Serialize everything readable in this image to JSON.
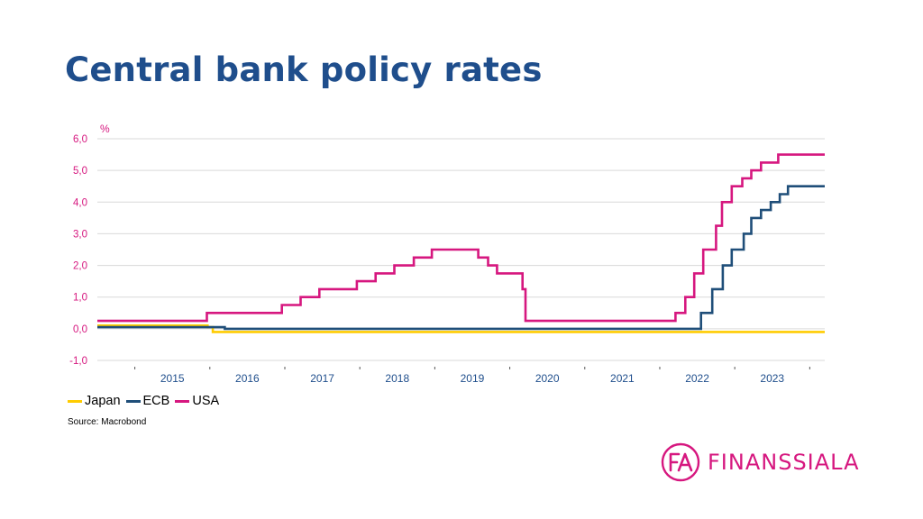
{
  "title": "Central bank policy rates",
  "source": "Source: Macrobond",
  "brand": {
    "name": "FINANSSIALA",
    "logo_letters": "FA",
    "color": "#d6177f"
  },
  "colors": {
    "title": "#1f4e8c",
    "axis_label": "#d6177f",
    "year_label": "#1f4e8c",
    "grid": "#d9d9d9"
  },
  "chart_data": {
    "type": "line",
    "step": true,
    "unit_label": "%",
    "xlim": [
      2014.5,
      2024.2
    ],
    "ylim": [
      -1,
      6
    ],
    "yticks": [
      -1,
      0,
      1,
      2,
      3,
      4,
      5,
      6
    ],
    "yticklabels": [
      "-1,0",
      "0,0",
      "1,0",
      "2,0",
      "3,0",
      "4,0",
      "5,0",
      "6,0"
    ],
    "xticklabels": [
      "2015",
      "2016",
      "2017",
      "2018",
      "2019",
      "2020",
      "2021",
      "2022",
      "2023"
    ],
    "grid": true,
    "legend": "bottom-left",
    "series": [
      {
        "name": "Japan",
        "color": "#ffcc00",
        "points": [
          [
            2014.5,
            0.1
          ],
          [
            2015.97,
            0.1
          ],
          [
            2015.97,
            0.05
          ],
          [
            2016.04,
            0.05
          ],
          [
            2016.04,
            -0.1
          ],
          [
            2024.2,
            -0.1
          ]
        ]
      },
      {
        "name": "ECB",
        "color": "#1f4e79",
        "points": [
          [
            2014.5,
            0.05
          ],
          [
            2016.2,
            0.05
          ],
          [
            2016.2,
            0.0
          ],
          [
            2022.55,
            0.0
          ],
          [
            2022.55,
            0.5
          ],
          [
            2022.7,
            0.5
          ],
          [
            2022.7,
            1.25
          ],
          [
            2022.84,
            1.25
          ],
          [
            2022.84,
            2.0
          ],
          [
            2022.96,
            2.0
          ],
          [
            2022.96,
            2.5
          ],
          [
            2023.12,
            2.5
          ],
          [
            2023.12,
            3.0
          ],
          [
            2023.22,
            3.0
          ],
          [
            2023.22,
            3.5
          ],
          [
            2023.35,
            3.5
          ],
          [
            2023.35,
            3.75
          ],
          [
            2023.48,
            3.75
          ],
          [
            2023.48,
            4.0
          ],
          [
            2023.6,
            4.0
          ],
          [
            2023.6,
            4.25
          ],
          [
            2023.71,
            4.25
          ],
          [
            2023.71,
            4.5
          ],
          [
            2024.2,
            4.5
          ]
        ]
      },
      {
        "name": "USA",
        "color": "#d6177f",
        "points": [
          [
            2014.5,
            0.25
          ],
          [
            2015.96,
            0.25
          ],
          [
            2015.96,
            0.5
          ],
          [
            2016.96,
            0.5
          ],
          [
            2016.96,
            0.75
          ],
          [
            2017.21,
            0.75
          ],
          [
            2017.21,
            1.0
          ],
          [
            2017.46,
            1.0
          ],
          [
            2017.46,
            1.25
          ],
          [
            2017.96,
            1.25
          ],
          [
            2017.96,
            1.5
          ],
          [
            2018.21,
            1.5
          ],
          [
            2018.21,
            1.75
          ],
          [
            2018.46,
            1.75
          ],
          [
            2018.46,
            2.0
          ],
          [
            2018.72,
            2.0
          ],
          [
            2018.72,
            2.25
          ],
          [
            2018.96,
            2.25
          ],
          [
            2018.96,
            2.5
          ],
          [
            2019.58,
            2.5
          ],
          [
            2019.58,
            2.25
          ],
          [
            2019.71,
            2.25
          ],
          [
            2019.71,
            2.0
          ],
          [
            2019.83,
            2.0
          ],
          [
            2019.83,
            1.75
          ],
          [
            2020.17,
            1.75
          ],
          [
            2020.17,
            1.25
          ],
          [
            2020.21,
            1.25
          ],
          [
            2020.21,
            0.25
          ],
          [
            2022.21,
            0.25
          ],
          [
            2022.21,
            0.5
          ],
          [
            2022.34,
            0.5
          ],
          [
            2022.34,
            1.0
          ],
          [
            2022.46,
            1.0
          ],
          [
            2022.46,
            1.75
          ],
          [
            2022.58,
            1.75
          ],
          [
            2022.58,
            2.5
          ],
          [
            2022.75,
            2.5
          ],
          [
            2022.75,
            3.25
          ],
          [
            2022.83,
            3.25
          ],
          [
            2022.83,
            4.0
          ],
          [
            2022.96,
            4.0
          ],
          [
            2022.96,
            4.5
          ],
          [
            2023.1,
            4.5
          ],
          [
            2023.1,
            4.75
          ],
          [
            2023.22,
            4.75
          ],
          [
            2023.22,
            5.0
          ],
          [
            2023.35,
            5.0
          ],
          [
            2023.35,
            5.25
          ],
          [
            2023.58,
            5.25
          ],
          [
            2023.58,
            5.5
          ],
          [
            2024.2,
            5.5
          ]
        ]
      }
    ]
  }
}
